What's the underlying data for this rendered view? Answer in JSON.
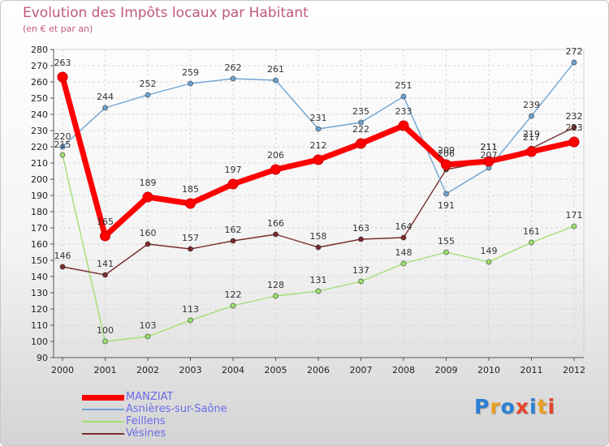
{
  "title": "Evolution des Impôts locaux par Habitant",
  "subtitle": "(en € et par an)",
  "logo": {
    "text": "Proxiti",
    "colors": [
      "#2a7fd4",
      "#e8a020",
      "#2a7fd4",
      "#e8452a",
      "#2a7fd4",
      "#e8a020",
      "#e8452a"
    ]
  },
  "chart_data": {
    "type": "line",
    "title": "Evolution des Impôts locaux par Habitant",
    "subtitle": "(en € et par an)",
    "xlabel": "",
    "ylabel": "",
    "x": [
      "2000",
      "2001",
      "2002",
      "2003",
      "2004",
      "2005",
      "2006",
      "2007",
      "2008",
      "2009",
      "2010",
      "2011",
      "2012"
    ],
    "ylim": [
      90,
      280
    ],
    "yticks": [
      90,
      100,
      110,
      120,
      130,
      140,
      150,
      160,
      170,
      180,
      190,
      200,
      210,
      220,
      230,
      240,
      250,
      260,
      270,
      280
    ],
    "grid": true,
    "legend_position": "bottom-left",
    "series": [
      {
        "name": "MANZIAT",
        "color": "#ff0000",
        "values": [
          263,
          165,
          189,
          185,
          197,
          206,
          212,
          222,
          233,
          209,
          211,
          217,
          223
        ],
        "labels": [
          "263",
          "165",
          "189",
          "185",
          "197",
          "206",
          "212",
          "222",
          "233",
          "209",
          "211",
          "217",
          "223"
        ]
      },
      {
        "name": "Asnières-sur-Saône",
        "color": "#6fa3d2",
        "values": [
          220,
          244,
          252,
          259,
          262,
          261,
          231,
          235,
          251,
          191,
          207,
          239,
          272
        ],
        "labels": [
          "220",
          "244",
          "252",
          "259",
          "262",
          "261",
          "231",
          "235",
          "251",
          "191",
          "207",
          "239",
          "272"
        ]
      },
      {
        "name": "Feillens",
        "color": "#9fe070",
        "values": [
          215,
          100,
          103,
          113,
          122,
          128,
          131,
          137,
          148,
          155,
          149,
          161,
          171
        ],
        "labels": [
          "215",
          "100",
          "103",
          "113",
          "122",
          "128",
          "131",
          "137",
          "148",
          "155",
          "149",
          "161",
          "171"
        ]
      },
      {
        "name": "Vésines",
        "color": "#7a2c2c",
        "values": [
          146,
          141,
          160,
          157,
          162,
          166,
          158,
          163,
          164,
          206,
          211,
          219,
          232
        ],
        "labels": [
          "146",
          "141",
          "160",
          "157",
          "162",
          "166",
          "158",
          "163",
          "164",
          "206",
          "211",
          "219",
          "232"
        ]
      }
    ]
  }
}
